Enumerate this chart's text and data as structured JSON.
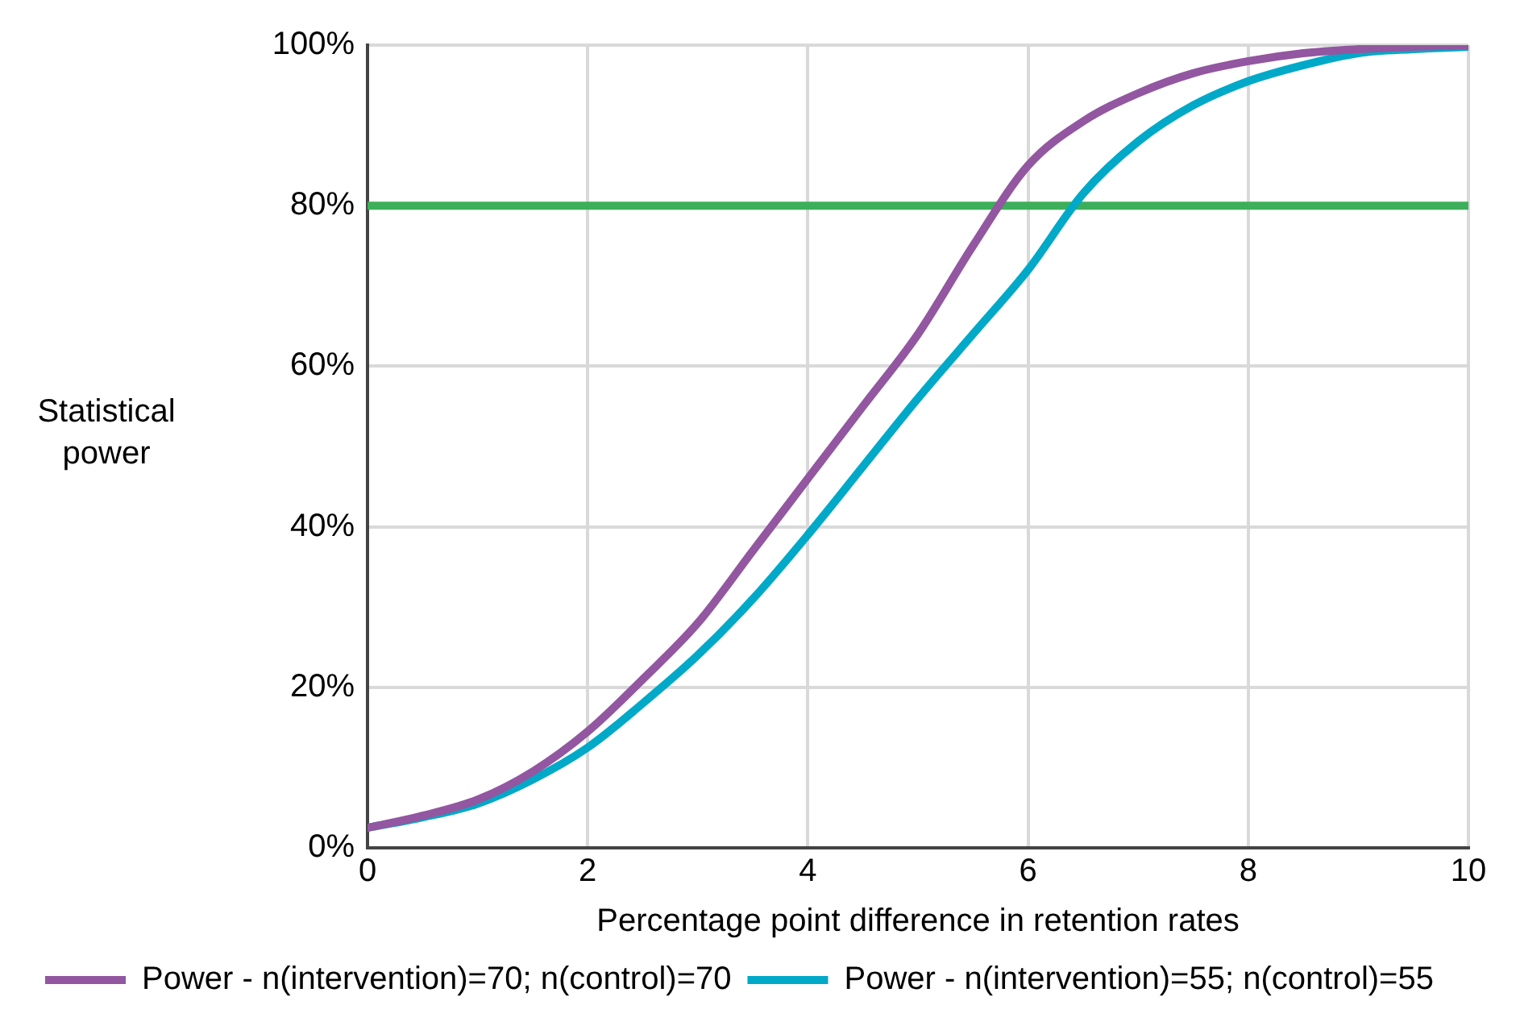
{
  "chart_data": {
    "type": "line",
    "xlabel": "Percentage point difference in retention rates",
    "ylabel": "Statistical power",
    "x": [
      0,
      0.5,
      1,
      1.5,
      2,
      2.5,
      3,
      3.5,
      4,
      4.5,
      5,
      5.5,
      6,
      6.5,
      7,
      7.5,
      8,
      8.5,
      9,
      9.5,
      10
    ],
    "series": [
      {
        "name": "Power - n(intervention)=70; n(control)=70",
        "color": "#9257a0",
        "values": [
          2.5,
          4,
          6,
          9.5,
          14.5,
          21,
          28,
          37,
          46,
          55,
          64,
          75,
          85,
          90.5,
          94,
          96.5,
          98,
          99,
          99.5,
          99.8,
          100
        ]
      },
      {
        "name": "Power - n(intervention)=55; n(control)=55",
        "color": "#00a9c8",
        "values": [
          2.5,
          3.8,
          5.5,
          8.5,
          12.5,
          18,
          24,
          31,
          39,
          47.5,
          56,
          64,
          72,
          81.5,
          88,
          92.5,
          95.5,
          97.5,
          99,
          99.5,
          99.8
        ]
      }
    ],
    "xlim": [
      0,
      10
    ],
    "xticks": [
      0,
      2,
      4,
      6,
      8,
      10
    ],
    "ylim": [
      0,
      100
    ],
    "yticks": [
      {
        "value": 0,
        "label": "0%"
      },
      {
        "value": 20,
        "label": "20%"
      },
      {
        "value": 40,
        "label": "40%"
      },
      {
        "value": 60,
        "label": "60%"
      },
      {
        "value": 80,
        "label": "80%"
      },
      {
        "value": 100,
        "label": "100%"
      }
    ],
    "ref_lines": [
      {
        "axis": "y",
        "value": 80,
        "color": "#3daf5a"
      }
    ],
    "grid": true,
    "legend": "bottom left",
    "marker": "none",
    "line_style": "solid"
  }
}
